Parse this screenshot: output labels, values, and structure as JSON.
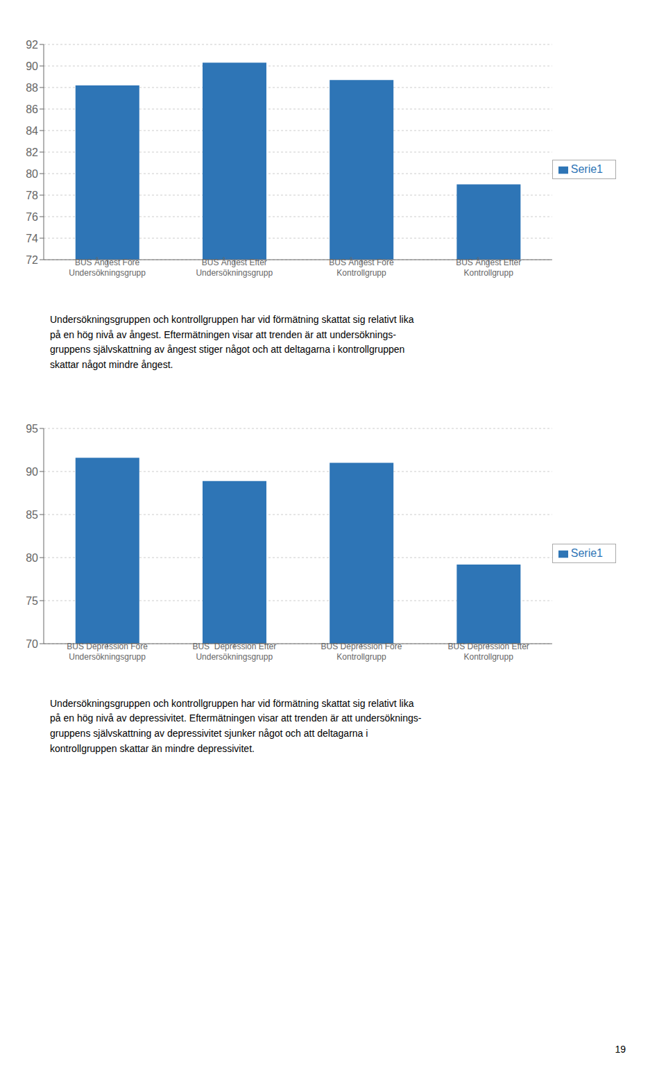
{
  "chart_data": [
    {
      "type": "bar",
      "categories": [
        "BUS Ångest Före\nUndersökningsgrupp",
        "BUS Ångest Efter\nUndersökningsgrupp",
        "BUS Ångest Före\nKontrollgrupp",
        "BUS Ångest Efter\nKontrollgrupp"
      ],
      "series": [
        {
          "name": "Serie1",
          "color": "#2E75B6",
          "values": [
            88.2,
            90.3,
            88.7,
            79.0
          ]
        }
      ],
      "ylim": [
        72,
        92
      ],
      "yticks": [
        72,
        74,
        76,
        78,
        80,
        82,
        84,
        86,
        88,
        90,
        92
      ],
      "grid": true,
      "legend": "right",
      "annotations": [
        "Undersökningsgruppen och kontrollgruppen har vid förmätning skattat sig relativt lika\npå en hög nivå av ångest. Eftermätningen visar att trenden är att undersöknings-\ngruppens självskattning av ångest stiger något och att deltagarna i kontrollgruppen\nskattar något mindre ångest."
      ]
    },
    {
      "type": "bar",
      "categories": [
        "BUS Depression Före\nUndersökningsgrupp",
        "BUS  Depression Efter\nUndersökningsgrupp",
        "BUS Depression Före\nKontrollgrupp",
        "BUS Depression Efter\nKontrollgrupp"
      ],
      "series": [
        {
          "name": "Serie1",
          "color": "#2E75B6",
          "values": [
            91.6,
            88.9,
            91.0,
            79.2
          ]
        }
      ],
      "ylim": [
        70,
        95
      ],
      "yticks": [
        70,
        75,
        80,
        85,
        90,
        95
      ],
      "grid": true,
      "legend": "right",
      "annotations": [
        "Undersökningsgruppen och kontrollgruppen har vid förmätning skattat sig relativt lika\npå en hög nivå av depressivitet. Eftermätningen visar att trenden är att undersöknings-\ngruppens självskattning av depressivitet sjunker något och att deltagarna i\nkontrollgruppen skattar än mindre depressivitet."
      ]
    }
  ],
  "annotations": [
    "19"
  ]
}
